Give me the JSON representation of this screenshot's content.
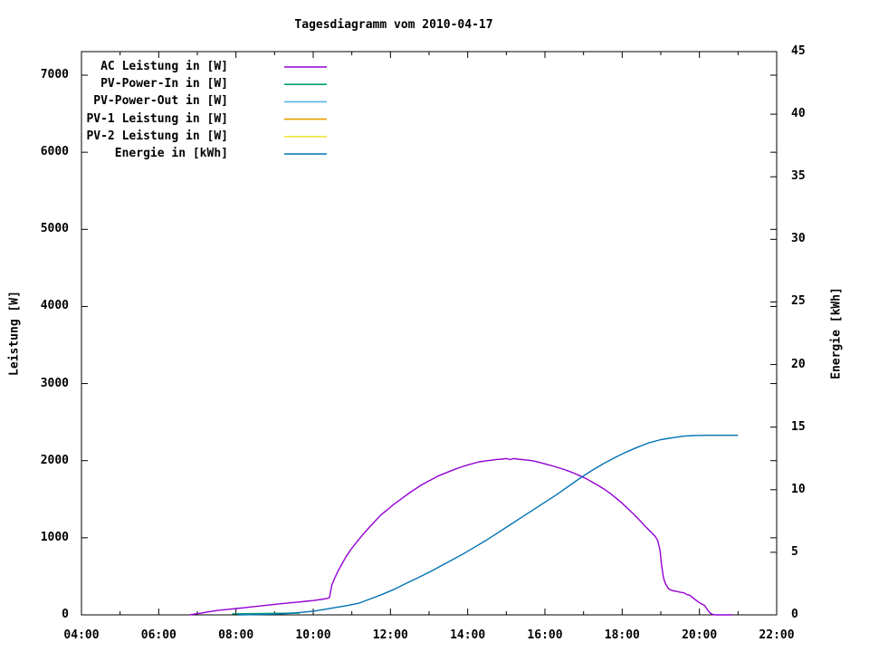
{
  "title": "Tagesdiagramm vom 2010-04-17",
  "axes": {
    "left": {
      "label": "Leistung [W]",
      "tick_values": [
        0,
        1000,
        2000,
        3000,
        4000,
        5000,
        6000,
        7000
      ],
      "range": [
        0,
        7306
      ]
    },
    "right": {
      "label": "Energie [kWh]",
      "tick_values": [
        0,
        5,
        10,
        15,
        20,
        25,
        30,
        35,
        40,
        45
      ],
      "range": [
        0,
        45
      ]
    },
    "x": {
      "tick_labels": [
        "04:00",
        "06:00",
        "08:00",
        "10:00",
        "12:00",
        "14:00",
        "16:00",
        "18:00",
        "20:00",
        "22:00"
      ],
      "tick_hours": [
        4,
        6,
        8,
        10,
        12,
        14,
        16,
        18,
        20,
        22
      ],
      "minor_hours": [
        5,
        7,
        9,
        11,
        13,
        15,
        17,
        19,
        21
      ],
      "range_hours": [
        4,
        22
      ]
    }
  },
  "legend": {
    "entries": [
      {
        "label": "AC Leistung in [W]",
        "color": "#9400d3"
      },
      {
        "label": "PV-Power-In in [W]",
        "color": "#009e73"
      },
      {
        "label": "PV-Power-Out in [W]",
        "color": "#56b4e9"
      },
      {
        "label": "PV-1 Leistung in [W]",
        "color": "#e69f00"
      },
      {
        "label": "PV-2 Leistung in [W]",
        "color": "#f0e442"
      },
      {
        "label": "Energie in [kWh]",
        "color": "#0072b2"
      }
    ]
  },
  "chart_data": {
    "type": "line",
    "title": "Tagesdiagramm vom 2010-04-17",
    "x_range_hours": [
      4,
      22
    ],
    "y_left_label": "Leistung [W]",
    "y_left_range": [
      0,
      7306
    ],
    "y_right_label": "Energie [kWh]",
    "y_right_range": [
      0,
      45
    ],
    "grid": false,
    "legend_position": "top-left-inside",
    "series": [
      {
        "name": "AC Leistung in [W]",
        "axis": "left",
        "color": "#9400d3",
        "points": [
          [
            6.8,
            0
          ],
          [
            6.9,
            8
          ],
          [
            7.1,
            22
          ],
          [
            7.3,
            40
          ],
          [
            7.6,
            62
          ],
          [
            7.8,
            72
          ],
          [
            8.0,
            82
          ],
          [
            8.2,
            92
          ],
          [
            8.4,
            103
          ],
          [
            8.6,
            114
          ],
          [
            8.8,
            126
          ],
          [
            9.0,
            136
          ],
          [
            9.2,
            146
          ],
          [
            9.4,
            156
          ],
          [
            9.6,
            166
          ],
          [
            9.8,
            176
          ],
          [
            10.0,
            186
          ],
          [
            10.2,
            200
          ],
          [
            10.35,
            212
          ],
          [
            10.42,
            222
          ],
          [
            10.45,
            300
          ],
          [
            10.48,
            385
          ],
          [
            10.55,
            470
          ],
          [
            10.65,
            575
          ],
          [
            10.75,
            665
          ],
          [
            10.85,
            755
          ],
          [
            11.0,
            865
          ],
          [
            11.15,
            960
          ],
          [
            11.3,
            1050
          ],
          [
            11.45,
            1135
          ],
          [
            11.6,
            1215
          ],
          [
            11.75,
            1295
          ],
          [
            11.9,
            1355
          ],
          [
            12.05,
            1420
          ],
          [
            12.2,
            1475
          ],
          [
            12.35,
            1530
          ],
          [
            12.5,
            1585
          ],
          [
            12.65,
            1635
          ],
          [
            12.8,
            1685
          ],
          [
            12.95,
            1725
          ],
          [
            13.1,
            1765
          ],
          [
            13.25,
            1805
          ],
          [
            13.4,
            1835
          ],
          [
            13.55,
            1865
          ],
          [
            13.7,
            1895
          ],
          [
            13.85,
            1920
          ],
          [
            14.0,
            1945
          ],
          [
            14.15,
            1965
          ],
          [
            14.3,
            1985
          ],
          [
            14.45,
            1995
          ],
          [
            14.6,
            2005
          ],
          [
            14.75,
            2015
          ],
          [
            14.9,
            2020
          ],
          [
            15.0,
            2028
          ],
          [
            15.1,
            2014
          ],
          [
            15.2,
            2028
          ],
          [
            15.3,
            2020
          ],
          [
            15.45,
            2012
          ],
          [
            15.6,
            2005
          ],
          [
            15.75,
            1992
          ],
          [
            15.9,
            1972
          ],
          [
            16.05,
            1952
          ],
          [
            16.2,
            1932
          ],
          [
            16.35,
            1908
          ],
          [
            16.5,
            1885
          ],
          [
            16.65,
            1858
          ],
          [
            16.8,
            1828
          ],
          [
            16.95,
            1795
          ],
          [
            17.1,
            1758
          ],
          [
            17.25,
            1715
          ],
          [
            17.4,
            1672
          ],
          [
            17.55,
            1625
          ],
          [
            17.7,
            1572
          ],
          [
            17.85,
            1512
          ],
          [
            18.0,
            1448
          ],
          [
            18.15,
            1378
          ],
          [
            18.3,
            1305
          ],
          [
            18.45,
            1228
          ],
          [
            18.6,
            1148
          ],
          [
            18.75,
            1072
          ],
          [
            18.85,
            1022
          ],
          [
            18.92,
            965
          ],
          [
            18.98,
            840
          ],
          [
            19.02,
            640
          ],
          [
            19.07,
            480
          ],
          [
            19.12,
            405
          ],
          [
            19.2,
            340
          ],
          [
            19.3,
            315
          ],
          [
            19.4,
            305
          ],
          [
            19.5,
            295
          ],
          [
            19.6,
            285
          ],
          [
            19.68,
            262
          ],
          [
            19.75,
            255
          ],
          [
            19.82,
            225
          ],
          [
            19.9,
            195
          ],
          [
            19.97,
            168
          ],
          [
            20.05,
            143
          ],
          [
            20.12,
            128
          ],
          [
            20.17,
            95
          ],
          [
            20.22,
            55
          ],
          [
            20.28,
            22
          ],
          [
            20.35,
            5
          ],
          [
            20.42,
            0
          ],
          [
            20.85,
            0
          ]
        ]
      },
      {
        "name": "PV-Power-In in [W]",
        "axis": "left",
        "color": "#009e73",
        "points": [
          [
            7.9,
            14
          ],
          [
            8.5,
            16
          ],
          [
            9.0,
            20
          ],
          [
            9.65,
            24
          ]
        ]
      },
      {
        "name": "PV-Power-Out in [W]",
        "axis": "left",
        "color": "#56b4e9",
        "points": []
      },
      {
        "name": "PV-1 Leistung in [W]",
        "axis": "left",
        "color": "#e69f00",
        "points": []
      },
      {
        "name": "PV-2 Leistung in [W]",
        "axis": "left",
        "color": "#f0e442",
        "points": []
      },
      {
        "name": "Energie in [kWh]",
        "axis": "right",
        "color": "#0072b2",
        "points": [
          [
            8.05,
            0
          ],
          [
            8.5,
            0.02
          ],
          [
            9.0,
            0.06
          ],
          [
            9.4,
            0.12
          ],
          [
            9.7,
            0.2
          ],
          [
            10.0,
            0.3
          ],
          [
            10.3,
            0.44
          ],
          [
            10.6,
            0.6
          ],
          [
            10.9,
            0.75
          ],
          [
            11.2,
            0.95
          ],
          [
            11.5,
            1.3
          ],
          [
            11.8,
            1.65
          ],
          [
            12.1,
            2.05
          ],
          [
            12.4,
            2.5
          ],
          [
            12.7,
            2.95
          ],
          [
            13.0,
            3.4
          ],
          [
            13.3,
            3.9
          ],
          [
            13.6,
            4.4
          ],
          [
            13.9,
            4.9
          ],
          [
            14.2,
            5.45
          ],
          [
            14.5,
            6.0
          ],
          [
            14.8,
            6.6
          ],
          [
            15.1,
            7.2
          ],
          [
            15.4,
            7.8
          ],
          [
            15.7,
            8.4
          ],
          [
            16.0,
            9.0
          ],
          [
            16.3,
            9.6
          ],
          [
            16.6,
            10.25
          ],
          [
            16.9,
            10.9
          ],
          [
            17.2,
            11.5
          ],
          [
            17.5,
            12.05
          ],
          [
            17.8,
            12.55
          ],
          [
            18.1,
            13.0
          ],
          [
            18.4,
            13.4
          ],
          [
            18.7,
            13.75
          ],
          [
            19.0,
            14.0
          ],
          [
            19.3,
            14.15
          ],
          [
            19.6,
            14.28
          ],
          [
            19.9,
            14.33
          ],
          [
            20.2,
            14.35
          ],
          [
            21.0,
            14.35
          ]
        ]
      }
    ]
  }
}
